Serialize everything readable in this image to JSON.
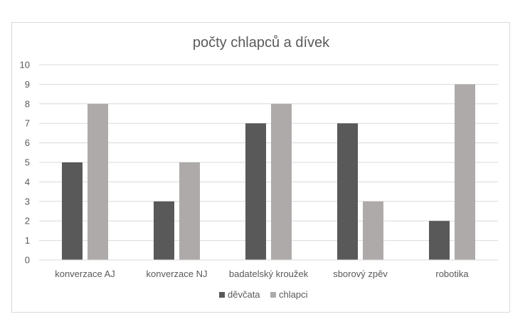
{
  "chart_data": {
    "type": "bar",
    "title": "počty chlapců a dívek",
    "xlabel": "",
    "ylabel": "",
    "categories": [
      "konverzace AJ",
      "konverzace NJ",
      "badatelský kroužek",
      "sborový zpěv",
      "robotika"
    ],
    "series": [
      {
        "name": "děvčata",
        "values": [
          5,
          3,
          7,
          7,
          2
        ],
        "color": "#595959"
      },
      {
        "name": "chlapci",
        "values": [
          8,
          5,
          8,
          3,
          9
        ],
        "color": "#aeaaaa"
      }
    ],
    "ylim": [
      0,
      10
    ],
    "yticks": [
      "0",
      "1",
      "2",
      "3",
      "4",
      "5",
      "6",
      "7",
      "8",
      "9",
      "10"
    ],
    "grid": true,
    "gridline_color": "#d9d9d9",
    "legend_position": "bottom"
  }
}
